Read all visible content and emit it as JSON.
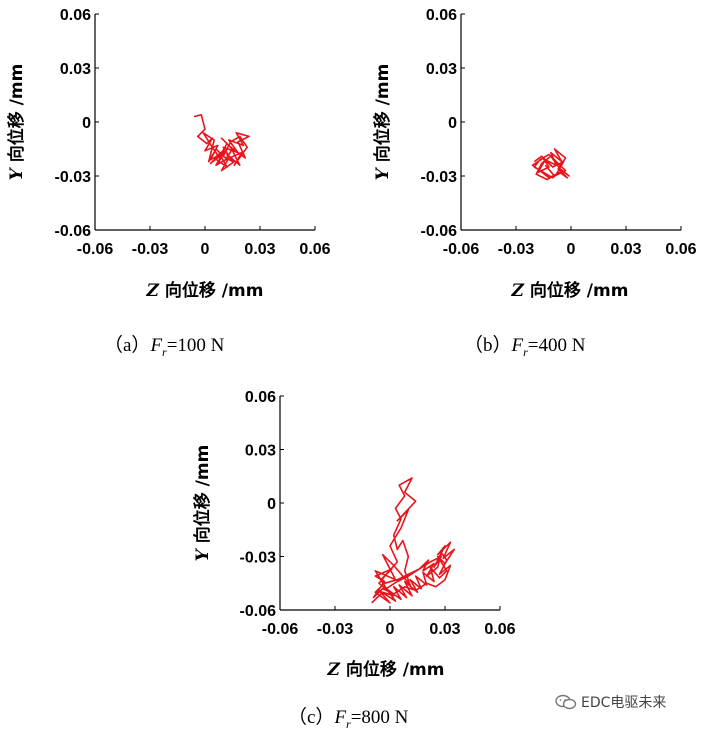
{
  "charts": [
    {
      "id": "a",
      "caption": {
        "prefix": "（a）",
        "var": "F",
        "sub": "r",
        "suffix": "=100 N"
      },
      "xlabel": {
        "var": "Z",
        "rest": " 向位移 /mm"
      },
      "ylabel": {
        "var": "Y",
        "rest": " 向位移 /mm"
      }
    },
    {
      "id": "b",
      "caption": {
        "prefix": "（b）",
        "var": "F",
        "sub": "r",
        "suffix": "=400 N"
      },
      "xlabel": {
        "var": "Z",
        "rest": " 向位移 /mm"
      },
      "ylabel": {
        "var": "Y",
        "rest": " 向位移 /mm"
      }
    },
    {
      "id": "c",
      "caption": {
        "prefix": "（c）",
        "var": "F",
        "sub": "r",
        "suffix": "=800 N"
      },
      "xlabel": {
        "var": "Z",
        "rest": " 向位移 /mm"
      },
      "ylabel": {
        "var": "Y",
        "rest": " 向位移 /mm"
      }
    }
  ],
  "watermark": {
    "text": "EDC电驱未来",
    "icon": "wechat-icon"
  },
  "chart_data": [
    {
      "type": "line",
      "color": "#e8141c",
      "xlabel": "Z 向位移 /mm",
      "ylabel": "Y 向位移 /mm",
      "xlim": [
        -0.06,
        0.06
      ],
      "ylim": [
        -0.06,
        0.06
      ],
      "xticks": [
        "-0.06",
        "-0.03",
        "0",
        "0.03",
        "0.06"
      ],
      "yticks": [
        "-0.06",
        "-0.03",
        "0",
        "0.03",
        "0.06"
      ],
      "series": [
        {
          "x": [
            -0.006,
            -0.002,
            0.0,
            -0.004,
            0.001,
            0.004,
            0.0,
            0.007,
            0.003,
            0.01,
            0.006,
            0.013,
            0.009,
            0.016,
            0.012,
            0.019,
            0.014,
            0.022,
            0.018,
            0.024,
            0.017,
            0.021,
            0.013,
            0.018,
            0.01,
            0.015,
            0.008,
            0.012,
            0.005,
            0.01,
            0.003,
            0.008,
            0.012,
            0.009,
            0.015,
            0.011,
            0.02,
            0.016,
            0.023,
            0.019,
            0.014,
            0.01,
            0.006,
            0.002,
            0.005,
            -0.001,
            0.004,
            0.008,
            0.011,
            0.007
          ],
          "y": [
            0.003,
            0.004,
            -0.004,
            -0.008,
            -0.012,
            -0.009,
            -0.016,
            -0.013,
            -0.021,
            -0.017,
            -0.024,
            -0.02,
            -0.027,
            -0.022,
            -0.018,
            -0.024,
            -0.014,
            -0.02,
            -0.011,
            -0.008,
            -0.006,
            -0.013,
            -0.01,
            -0.017,
            -0.014,
            -0.022,
            -0.018,
            -0.025,
            -0.02,
            -0.016,
            -0.023,
            -0.019,
            -0.012,
            -0.009,
            -0.015,
            -0.021,
            -0.017,
            -0.024,
            -0.014,
            -0.008,
            -0.011,
            -0.019,
            -0.015,
            -0.022,
            -0.01,
            -0.006,
            -0.014,
            -0.02,
            -0.016,
            -0.023
          ]
        }
      ]
    },
    {
      "type": "line",
      "color": "#e8141c",
      "xlabel": "Z 向位移 /mm",
      "ylabel": "Y 向位移 /mm",
      "xlim": [
        -0.06,
        0.06
      ],
      "ylim": [
        -0.06,
        0.06
      ],
      "xticks": [
        "-0.06",
        "-0.03",
        "0",
        "0.03",
        "0.06"
      ],
      "yticks": [
        "-0.06",
        "-0.03",
        "0",
        "0.03",
        "0.06"
      ],
      "series": [
        {
          "x": [
            -0.02,
            -0.016,
            -0.012,
            -0.018,
            -0.014,
            -0.008,
            -0.011,
            -0.005,
            -0.009,
            -0.003,
            -0.007,
            -0.002,
            -0.006,
            -0.012,
            -0.017,
            -0.021,
            -0.015,
            -0.01,
            -0.004,
            -0.008,
            -0.013,
            -0.019,
            -0.016,
            -0.011,
            -0.006,
            -0.001,
            -0.005,
            -0.01,
            -0.015,
            -0.02,
            -0.017,
            -0.012,
            -0.007,
            -0.003,
            -0.009,
            -0.014
          ],
          "y": [
            -0.022,
            -0.019,
            -0.025,
            -0.028,
            -0.021,
            -0.024,
            -0.017,
            -0.022,
            -0.015,
            -0.02,
            -0.026,
            -0.031,
            -0.028,
            -0.031,
            -0.027,
            -0.024,
            -0.02,
            -0.025,
            -0.022,
            -0.029,
            -0.032,
            -0.029,
            -0.023,
            -0.019,
            -0.026,
            -0.03,
            -0.027,
            -0.031,
            -0.028,
            -0.025,
            -0.021,
            -0.018,
            -0.023,
            -0.027,
            -0.03,
            -0.024
          ]
        }
      ]
    },
    {
      "type": "line",
      "color": "#e8141c",
      "xlabel": "Z 向位移 /mm",
      "ylabel": "Y 向位移 /mm",
      "xlim": [
        -0.06,
        0.06
      ],
      "ylim": [
        -0.06,
        0.06
      ],
      "xticks": [
        "-0.06",
        "-0.03",
        "0",
        "0.03",
        "0.06"
      ],
      "yticks": [
        "-0.06",
        "-0.03",
        "0",
        "0.03",
        "0.06"
      ],
      "series": [
        {
          "x": [
            -0.01,
            -0.004,
            0.002,
            -0.006,
            -0.002,
            0.004,
            0.0,
            0.006,
            0.01,
            0.004,
            0.014,
            0.008,
            0.012,
            0.005,
            0.008,
            0.003,
            0.006,
            0.002,
            0.004,
            0.007,
            0.01,
            0.008,
            0.011,
            0.007,
            0.002,
            -0.004,
            0.003,
            -0.008,
            -0.002,
            0.004,
            0.01,
            0.016,
            0.022,
            0.028,
            0.024,
            0.03,
            0.026,
            0.033,
            0.029,
            0.035,
            0.03,
            0.026,
            0.031,
            0.027,
            0.022,
            0.024,
            0.018,
            0.02,
            0.014,
            0.017,
            0.011,
            0.015,
            0.008,
            0.012,
            0.005,
            0.009,
            0.002,
            0.006,
            -0.002,
            0.003,
            -0.006,
            0.0,
            -0.008,
            -0.003,
            0.004,
            0.01,
            0.016,
            0.021,
            0.018,
            0.024,
            0.02,
            0.026,
            0.028,
            0.031,
            0.027,
            0.033,
            0.03,
            0.025,
            0.02,
            0.014,
            0.008,
            0.002,
            -0.004,
            -0.009,
            -0.003,
            -0.008,
            0.001,
            -0.005
          ],
          "y": [
            -0.056,
            -0.05,
            -0.052,
            -0.045,
            -0.04,
            -0.033,
            -0.024,
            -0.014,
            -0.004,
            -0.01,
            0.001,
            0.006,
            0.014,
            0.01,
            0.004,
            -0.003,
            -0.009,
            -0.018,
            -0.026,
            -0.021,
            -0.03,
            -0.038,
            -0.046,
            -0.041,
            -0.035,
            -0.029,
            -0.043,
            -0.038,
            -0.048,
            -0.044,
            -0.041,
            -0.037,
            -0.033,
            -0.03,
            -0.036,
            -0.024,
            -0.029,
            -0.022,
            -0.031,
            -0.026,
            -0.034,
            -0.03,
            -0.038,
            -0.042,
            -0.036,
            -0.044,
            -0.039,
            -0.046,
            -0.041,
            -0.048,
            -0.043,
            -0.05,
            -0.044,
            -0.052,
            -0.046,
            -0.053,
            -0.047,
            -0.054,
            -0.048,
            -0.055,
            -0.049,
            -0.056,
            -0.05,
            -0.045,
            -0.043,
            -0.04,
            -0.037,
            -0.032,
            -0.038,
            -0.034,
            -0.041,
            -0.036,
            -0.028,
            -0.032,
            -0.04,
            -0.035,
            -0.043,
            -0.047,
            -0.045,
            -0.049,
            -0.047,
            -0.051,
            -0.048,
            -0.053,
            -0.044,
            -0.041,
            -0.037,
            -0.043
          ]
        }
      ]
    }
  ]
}
